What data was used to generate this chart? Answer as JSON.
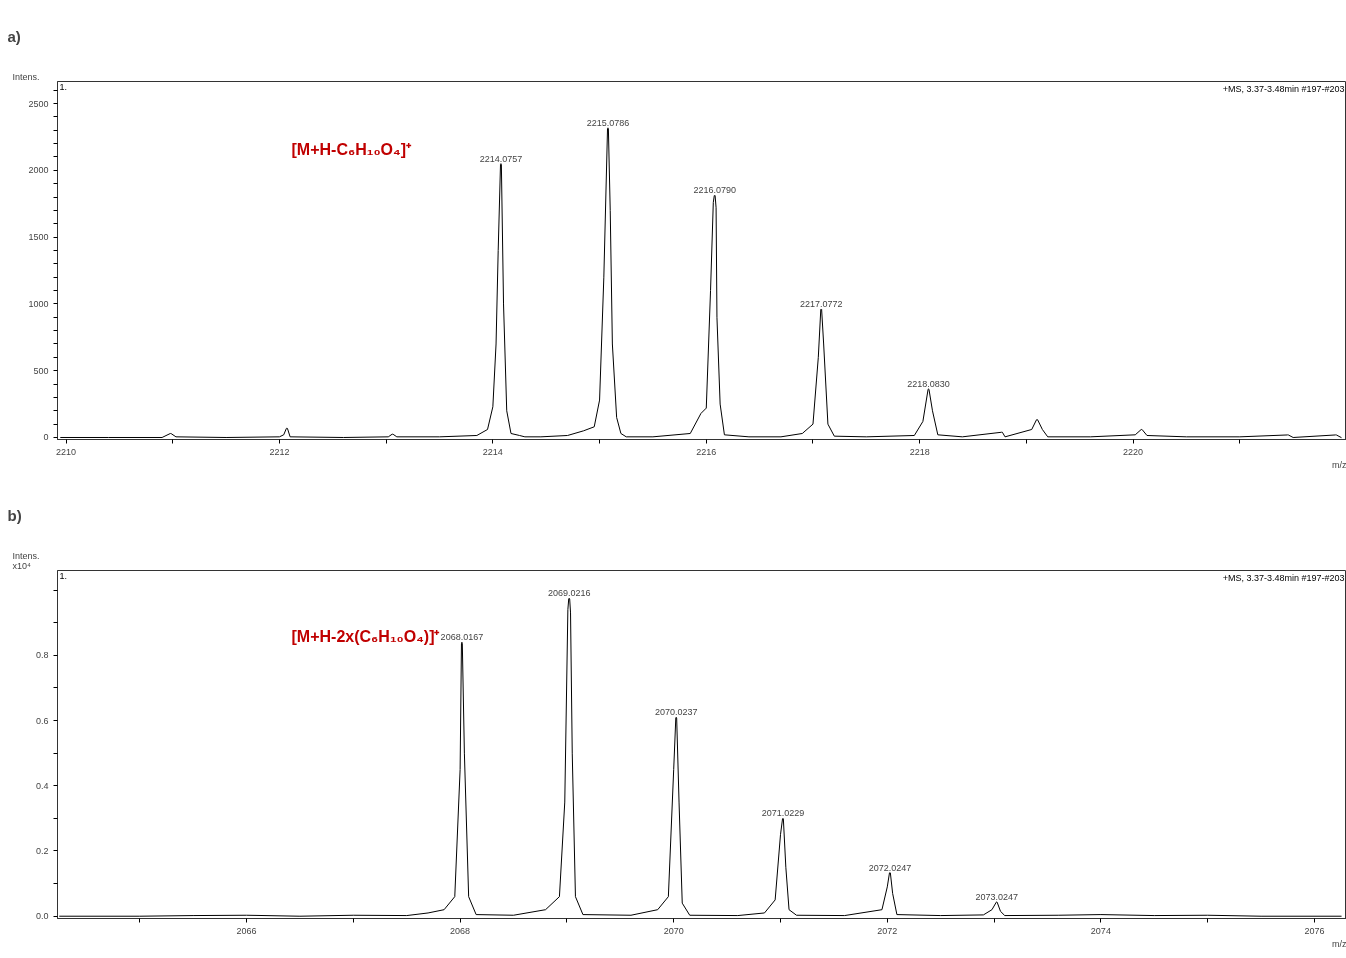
{
  "chart_data": [
    {
      "type": "line",
      "title": "a)",
      "xlabel": "m/z",
      "ylabel": "Intens.",
      "series": [
        {
          "color": "#000000",
          "x": [
            2209.95,
            2210.4,
            2210.9,
            2210.975,
            2210.98,
            2210.985,
            2211.03,
            2211.5,
            2212.0,
            2212.04,
            2212.065,
            2212.07,
            2212.075,
            2212.1,
            2212.6,
            2213.02,
            2213.055,
            2213.06,
            2213.065,
            2213.1,
            2213.5,
            2213.85,
            2213.95,
            2214.0,
            2214.03,
            2214.05,
            2214.0717,
            2214.0757,
            2214.0797,
            2214.1,
            2214.13,
            2214.17,
            2214.25,
            2214.3,
            2214.45,
            2214.7,
            2214.85,
            2214.95,
            2215.0,
            2215.04,
            2215.0746,
            2215.0786,
            2215.0826,
            2215.1,
            2215.12,
            2215.16,
            2215.2,
            2215.25,
            2215.5,
            2215.85,
            2215.95,
            2216.0,
            2216.04,
            2216.066,
            2216.075,
            2216.079,
            2216.083,
            2216.092,
            2216.1,
            2216.13,
            2216.17,
            2216.4,
            2216.7,
            2216.9,
            2217.0,
            2217.05,
            2217.0732,
            2217.0772,
            2217.0812,
            2217.1,
            2217.14,
            2217.2,
            2217.5,
            2217.95,
            2218.03,
            2218.079,
            2218.083,
            2218.087,
            2218.12,
            2218.17,
            2218.4,
            2218.765,
            2218.77,
            2218.775,
            2218.8,
            2219.05,
            2219.095,
            2219.1,
            2219.105,
            2219.15,
            2219.2,
            2219.6,
            2220.02,
            2220.075,
            2220.08,
            2220.085,
            2220.13,
            2220.5,
            2221.0,
            2221.445,
            2221.45,
            2221.455,
            2221.5,
            2221.895,
            2221.9,
            2221.905,
            2221.95
          ],
          "values": [
            0,
            0,
            0,
            29,
            30,
            29,
            5,
            0,
            5,
            20,
            68,
            70,
            68,
            5,
            0,
            5,
            24,
            25,
            24,
            5,
            5,
            15,
            60,
            230,
            700,
            1400,
            2045,
            2050,
            2045,
            1000,
            200,
            30,
            15,
            5,
            5,
            15,
            50,
            80,
            280,
            1200,
            2312,
            2318,
            2312,
            1700,
            700,
            150,
            30,
            5,
            5,
            30,
            180,
            220,
            1100,
            1760,
            1810,
            1814,
            1810,
            1720,
            900,
            250,
            20,
            5,
            5,
            30,
            100,
            600,
            958,
            962,
            958,
            700,
            100,
            10,
            5,
            15,
            120,
            361,
            363,
            361,
            200,
            20,
            5,
            39,
            40,
            39,
            5,
            60,
            133,
            134,
            133,
            60,
            5,
            5,
            20,
            59,
            60,
            59,
            15,
            5,
            5,
            19,
            20,
            19,
            0,
            19,
            20,
            19,
            0
          ]
        }
      ],
      "xlim": [
        2209.92,
        2222.0
      ],
      "ylim": [
        -15,
        2665
      ],
      "xticks": [
        2210,
        {
          "value": 2211,
          "label": null
        },
        2212,
        {
          "value": 2213,
          "label": null
        },
        2214,
        {
          "value": 2215,
          "label": null
        },
        2216,
        {
          "value": 2217,
          "label": null
        },
        2218,
        {
          "value": 2219,
          "label": null
        },
        2220,
        {
          "value": 2221,
          "label": null
        }
      ],
      "yticks": [
        0,
        {
          "value": 100,
          "label": null
        },
        {
          "value": 200,
          "label": null
        },
        {
          "value": 300,
          "label": null
        },
        {
          "value": 400,
          "label": null
        },
        500,
        {
          "value": 600,
          "label": null
        },
        {
          "value": 700,
          "label": null
        },
        {
          "value": 800,
          "label": null
        },
        {
          "value": 900,
          "label": null
        },
        1000,
        {
          "value": 1100,
          "label": null
        },
        {
          "value": 1200,
          "label": null
        },
        {
          "value": 1300,
          "label": null
        },
        {
          "value": 1400,
          "label": null
        },
        1500,
        {
          "value": 1600,
          "label": null
        },
        {
          "value": 1700,
          "label": null
        },
        {
          "value": 1800,
          "label": null
        },
        {
          "value": 1900,
          "label": null
        },
        2000,
        {
          "value": 2100,
          "label": null
        },
        {
          "value": 2200,
          "label": null
        },
        {
          "value": 2300,
          "label": null
        },
        {
          "value": 2400,
          "label": null
        },
        2500,
        {
          "value": 2600,
          "label": null
        }
      ],
      "annotations": [
        "1.",
        "+MS, 3.37-3.48min #197-#203",
        "[M+H-C₆H₁₀O₄]⁺",
        {
          "text": "2214.0757",
          "x": 2214.0757,
          "y": 2050
        },
        {
          "text": "2215.0786",
          "x": 2215.0786,
          "y": 2318
        },
        {
          "text": "2216.0790",
          "x": 2216.079,
          "y": 1814
        },
        {
          "text": "2217.0772",
          "x": 2217.0772,
          "y": 962
        },
        {
          "text": "2218.0830",
          "x": 2218.083,
          "y": 363
        }
      ]
    },
    {
      "type": "line",
      "title": "b)",
      "xlabel": "m/z",
      "ylabel": "Intens.\nx10⁴",
      "series": [
        {
          "color": "#000000",
          "x": [
            2064.25,
            2065.0,
            2065.5,
            2066.0,
            2066.5,
            2067.0,
            2067.5,
            2067.7,
            2067.85,
            2067.95,
            2068.0,
            2068.0127,
            2068.0167,
            2068.0207,
            2068.04,
            2068.08,
            2068.15,
            2068.5,
            2068.8,
            2068.93,
            2068.98,
            2069.009,
            2069.017,
            2069.0216,
            2069.026,
            2069.034,
            2069.05,
            2069.08,
            2069.15,
            2069.6,
            2069.85,
            2069.95,
            2070.0,
            2070.0197,
            2070.0237,
            2070.0277,
            2070.05,
            2070.08,
            2070.15,
            2070.6,
            2070.85,
            2070.95,
            2071.0,
            2071.0189,
            2071.0229,
            2071.0269,
            2071.05,
            2071.08,
            2071.15,
            2071.6,
            2071.95,
            2072.0,
            2072.0207,
            2072.0247,
            2072.0287,
            2072.05,
            2072.09,
            2072.5,
            2072.9,
            2072.98,
            2073.0207,
            2073.0247,
            2073.0287,
            2073.06,
            2073.1,
            2073.6,
            2074.0,
            2074.5,
            2075.0,
            2075.5,
            2076.25
          ],
          "values": [
            0,
            0,
            0.002,
            0.003,
            0,
            0.003,
            0.002,
            0.01,
            0.02,
            0.06,
            0.45,
            0.835,
            0.84,
            0.835,
            0.5,
            0.06,
            0.005,
            0.003,
            0.02,
            0.06,
            0.35,
            0.94,
            0.973,
            0.975,
            0.973,
            0.93,
            0.5,
            0.06,
            0.005,
            0.003,
            0.02,
            0.06,
            0.45,
            0.608,
            0.61,
            0.608,
            0.35,
            0.04,
            0.003,
            0.002,
            0.01,
            0.05,
            0.25,
            0.298,
            0.3,
            0.298,
            0.15,
            0.02,
            0.003,
            0.002,
            0.02,
            0.09,
            0.133,
            0.134,
            0.133,
            0.07,
            0.005,
            0.002,
            0.004,
            0.02,
            0.043,
            0.044,
            0.043,
            0.015,
            0.002,
            0.003,
            0.005,
            0.002,
            0.003,
            0,
            0
          ]
        }
      ],
      "xlim": [
        2064.23,
        2076.3
      ],
      "ylim": [
        -0.007,
        1.06
      ],
      "xticks": [
        {
          "value": 2065,
          "label": null
        },
        2066,
        {
          "value": 2067,
          "label": null
        },
        2068,
        {
          "value": 2069,
          "label": null
        },
        2070,
        {
          "value": 2071,
          "label": null
        },
        2072,
        {
          "value": 2073,
          "label": null
        },
        2074,
        {
          "value": 2075,
          "label": null
        },
        2076
      ],
      "yticks": [
        {
          "value": 0.0,
          "label": "0.0"
        },
        {
          "value": 0.1,
          "label": null
        },
        0.2,
        {
          "value": 0.3,
          "label": null
        },
        0.4,
        {
          "value": 0.5,
          "label": null
        },
        0.6,
        {
          "value": 0.7,
          "label": null
        },
        0.8,
        {
          "value": 0.9,
          "label": null
        },
        {
          "value": 1.0,
          "label": null
        }
      ],
      "annotations": [
        "1.",
        "+MS, 3.37-3.48min #197-#203",
        "[M+H-2x(C₆H₁₀O₄)]⁺",
        {
          "text": "2068.0167",
          "x": 2068.0167,
          "y": 0.84
        },
        {
          "text": "2069.0216",
          "x": 2069.0216,
          "y": 0.975
        },
        {
          "text": "2070.0237",
          "x": 2070.0237,
          "y": 0.61
        },
        {
          "text": "2071.0229",
          "x": 2071.0229,
          "y": 0.3
        },
        {
          "text": "2072.0247",
          "x": 2072.0247,
          "y": 0.134
        },
        {
          "text": "2073.0247",
          "x": 2073.0247,
          "y": 0.044
        }
      ]
    }
  ]
}
